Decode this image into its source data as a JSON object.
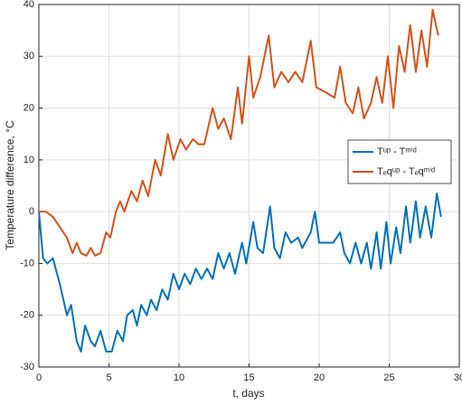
{
  "chart_data": {
    "type": "line",
    "xlabel": "t, days",
    "ylabel": "Temperature difference, °C",
    "xlim": [
      0,
      30
    ],
    "xticks": [
      0,
      5,
      10,
      15,
      20,
      25,
      30
    ],
    "ylim": [
      -30,
      40
    ],
    "yticks": [
      -30,
      -20,
      -10,
      0,
      10,
      20,
      30,
      40
    ],
    "grid": true,
    "legend": "right",
    "series": [
      {
        "name": "Tᵘᵖ - Tᵐⁱᵈ",
        "color": "#0072bd",
        "x": [
          0,
          0.3,
          0.6,
          1,
          1.5,
          2,
          2.3,
          2.7,
          3,
          3.3,
          3.7,
          4,
          4.4,
          4.8,
          5.2,
          5.6,
          6,
          6.3,
          6.7,
          7,
          7.3,
          7.7,
          8,
          8.4,
          8.8,
          9.2,
          9.6,
          10,
          10.4,
          10.8,
          11.2,
          11.6,
          12,
          12.4,
          12.8,
          13.2,
          13.6,
          14,
          14.5,
          14.8,
          15.3,
          15.6,
          16,
          16.5,
          16.8,
          17.2,
          17.6,
          18,
          18.5,
          18.8,
          19.4,
          19.7,
          20,
          20.5,
          21,
          21.5,
          21.8,
          22.2,
          22.6,
          23,
          23.4,
          23.7,
          24.1,
          24.4,
          24.8,
          25.1,
          25.5,
          25.8,
          26.2,
          26.5,
          26.9,
          27.2,
          27.6,
          28,
          28.4,
          28.7
        ],
        "values": [
          0,
          -9,
          -10,
          -9,
          -14,
          -20,
          -18,
          -25,
          -27,
          -22,
          -25,
          -26,
          -23,
          -27,
          -27,
          -23,
          -25,
          -20,
          -19,
          -22,
          -18,
          -20,
          -17,
          -19,
          -15,
          -17,
          -12,
          -15,
          -12,
          -14,
          -11,
          -13,
          -11,
          -13,
          -8,
          -11,
          -8,
          -12,
          -6,
          -10,
          -2,
          -7,
          -8,
          1,
          -7,
          -9,
          -4,
          -6,
          -5,
          -7,
          -4,
          0,
          -6,
          -6,
          -6,
          -4,
          -8,
          -10,
          -6,
          -10,
          -6,
          -11,
          -4,
          -11,
          -2,
          -10,
          -3,
          -8,
          1,
          -6,
          2,
          -5,
          1,
          -5,
          3.5,
          -1
        ]
      },
      {
        "name": "Tₑqᵘᵖ - Tₑqᵐⁱᵈ",
        "color": "#d95319",
        "x": [
          0,
          0.5,
          1,
          1.5,
          2,
          2.4,
          2.7,
          3,
          3.4,
          3.7,
          4,
          4.4,
          4.8,
          5.1,
          5.5,
          5.8,
          6.1,
          6.6,
          7,
          7.4,
          7.8,
          8.3,
          8.7,
          9.2,
          9.6,
          10.1,
          10.5,
          11,
          11.4,
          11.8,
          12.4,
          12.8,
          13.2,
          13.7,
          14.2,
          14.5,
          15,
          15.3,
          15.8,
          16.4,
          16.8,
          17.3,
          17.8,
          18.3,
          18.8,
          19.4,
          19.8,
          20.5,
          21.1,
          21.5,
          21.9,
          22.4,
          22.8,
          23.2,
          23.7,
          24.1,
          24.5,
          24.9,
          25.3,
          25.7,
          26.1,
          26.5,
          26.9,
          27.3,
          27.7,
          28.1,
          28.5
        ],
        "values": [
          0,
          0,
          -1,
          -3,
          -5,
          -8,
          -6,
          -8,
          -8.5,
          -7,
          -8.5,
          -8,
          -4,
          -5,
          0,
          2,
          0,
          4,
          2,
          6,
          3,
          10,
          7,
          15,
          10,
          14,
          12,
          14,
          13,
          13,
          20,
          16,
          18,
          14,
          24,
          17,
          30,
          22,
          26,
          34,
          24,
          27,
          25,
          27,
          25,
          33,
          24,
          23,
          22,
          28,
          21,
          19,
          24,
          18,
          21,
          26,
          21,
          30,
          20,
          32,
          27,
          36,
          27,
          35,
          28,
          39,
          34
        ]
      }
    ]
  }
}
